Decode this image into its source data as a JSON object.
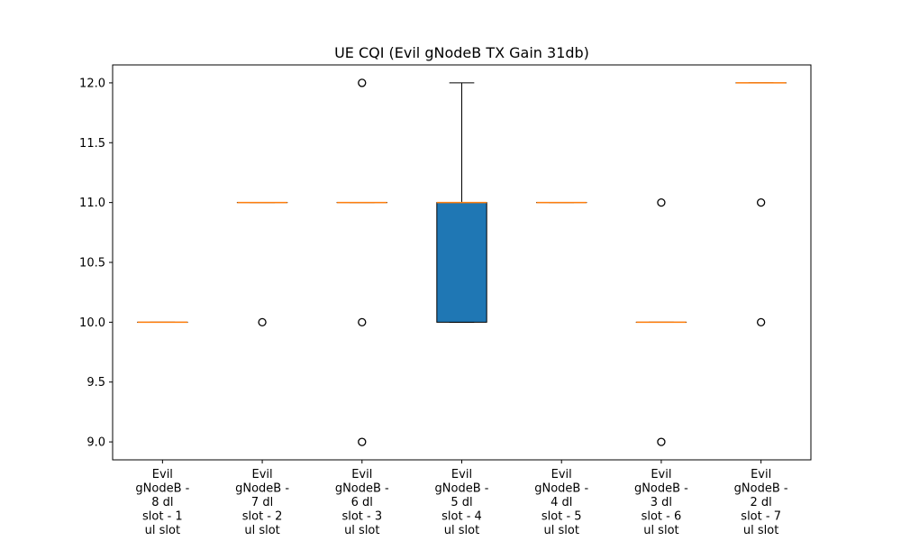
{
  "chart_data": {
    "type": "box",
    "title": "UE CQI (Evil gNodeB TX Gain 31db)",
    "xlabel": "",
    "ylabel": "",
    "ylim": [
      8.85,
      12.15
    ],
    "y_ticks": [
      "9.0",
      "9.5",
      "10.0",
      "10.5",
      "11.0",
      "11.5",
      "12.0"
    ],
    "grid": false,
    "categories": [
      [
        "Evil",
        "gNodeB -",
        "8 dl",
        "slot - 1",
        "ul slot"
      ],
      [
        "Evil",
        "gNodeB -",
        "7 dl",
        "slot - 2",
        "ul slot"
      ],
      [
        "Evil",
        "gNodeB -",
        "6 dl",
        "slot - 3",
        "ul slot"
      ],
      [
        "Evil",
        "gNodeB -",
        "5 dl",
        "slot - 4",
        "ul slot"
      ],
      [
        "Evil",
        "gNodeB -",
        "4 dl",
        "slot - 5",
        "ul slot"
      ],
      [
        "Evil",
        "gNodeB -",
        "3 dl",
        "slot - 6",
        "ul slot"
      ],
      [
        "Evil",
        "gNodeB -",
        "2 dl",
        "slot - 7",
        "ul slot"
      ]
    ],
    "boxes": [
      {
        "q1": 10,
        "median": 10,
        "q3": 10,
        "whisker_low": 10,
        "whisker_high": 10,
        "outliers": []
      },
      {
        "q1": 11,
        "median": 11,
        "q3": 11,
        "whisker_low": 11,
        "whisker_high": 11,
        "outliers": [
          10
        ]
      },
      {
        "q1": 11,
        "median": 11,
        "q3": 11,
        "whisker_low": 11,
        "whisker_high": 11,
        "outliers": [
          9,
          10,
          12
        ]
      },
      {
        "q1": 10,
        "median": 11,
        "q3": 11,
        "whisker_low": 10,
        "whisker_high": 12,
        "outliers": []
      },
      {
        "q1": 11,
        "median": 11,
        "q3": 11,
        "whisker_low": 11,
        "whisker_high": 11,
        "outliers": []
      },
      {
        "q1": 10,
        "median": 10,
        "q3": 10,
        "whisker_low": 10,
        "whisker_high": 10,
        "outliers": [
          9,
          11
        ]
      },
      {
        "q1": 12,
        "median": 12,
        "q3": 12,
        "whisker_low": 12,
        "whisker_high": 12,
        "outliers": [
          10,
          11
        ]
      }
    ],
    "colors": {
      "box_fill": "#1f77b4",
      "median": "#ff7f0e",
      "lines": "#000000"
    }
  }
}
